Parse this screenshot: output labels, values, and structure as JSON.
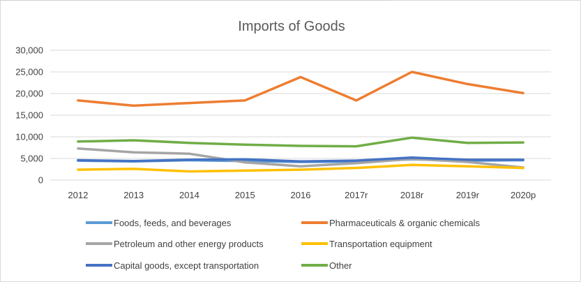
{
  "chart_data": {
    "type": "line",
    "title": "Imports of Goods",
    "xlabel": "",
    "ylabel": "",
    "categories": [
      "2012",
      "2013",
      "2014",
      "2015",
      "2016",
      "2017r",
      "2018r",
      "2019r",
      "2020p"
    ],
    "ylim": [
      0,
      30000
    ],
    "yticks": [
      "0",
      "5,000",
      "10,000",
      "15,000",
      "20,000",
      "25,000",
      "30,000"
    ],
    "grid": true,
    "legend_position": "bottom",
    "series": [
      {
        "name": "Foods, feeds, and beverages",
        "color": "#5b9bd5",
        "values": [
          4500,
          4300,
          4600,
          4400,
          4200,
          4300,
          4800,
          4500,
          4600
        ]
      },
      {
        "name": "Pharmaceuticals & organic chemicals",
        "color": "#ed7d31",
        "values": [
          18400,
          17200,
          17800,
          18400,
          23800,
          18400,
          25000,
          22200,
          20100
        ]
      },
      {
        "name": "Petroleum and other energy products",
        "color": "#a5a5a5",
        "values": [
          7300,
          6400,
          6100,
          4100,
          3200,
          3900,
          4900,
          4200,
          2900
        ]
      },
      {
        "name": "Transportation equipment",
        "color": "#ffc000",
        "values": [
          2400,
          2600,
          2000,
          2200,
          2400,
          2800,
          3500,
          3200,
          2800
        ]
      },
      {
        "name": "Capital goods, except transportation",
        "color": "#4472c4",
        "values": [
          4600,
          4400,
          4700,
          4800,
          4300,
          4500,
          5200,
          4700,
          4700
        ]
      },
      {
        "name": "Other",
        "color": "#70ad47",
        "values": [
          8900,
          9200,
          8600,
          8200,
          7900,
          7800,
          9800,
          8600,
          8700
        ]
      }
    ]
  }
}
